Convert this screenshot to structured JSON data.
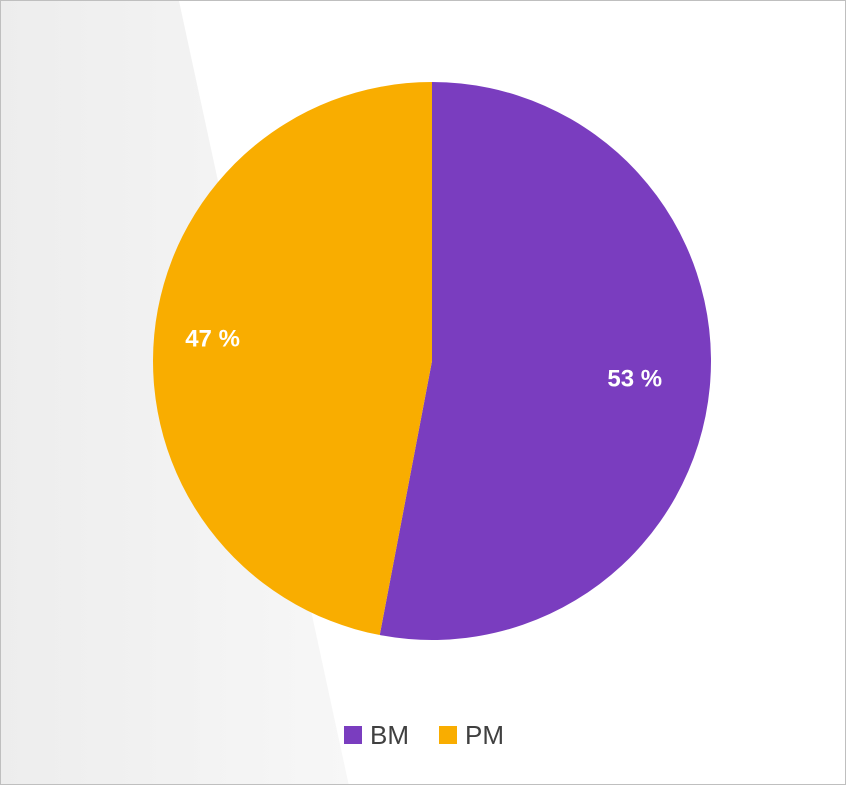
{
  "chart_data": {
    "type": "pie",
    "categories": [
      "BM",
      "PM"
    ],
    "values": [
      53,
      47
    ],
    "labels": [
      "53 %",
      "47 %"
    ],
    "colors": [
      "#7a3dbf",
      "#f9ad00"
    ],
    "start_angle_deg": 0,
    "direction": "clockwise",
    "legend_position": "bottom"
  },
  "legend": {
    "items": [
      {
        "label": "BM",
        "color": "#7a3dbf"
      },
      {
        "label": "PM",
        "color": "#f9ad00"
      }
    ]
  }
}
